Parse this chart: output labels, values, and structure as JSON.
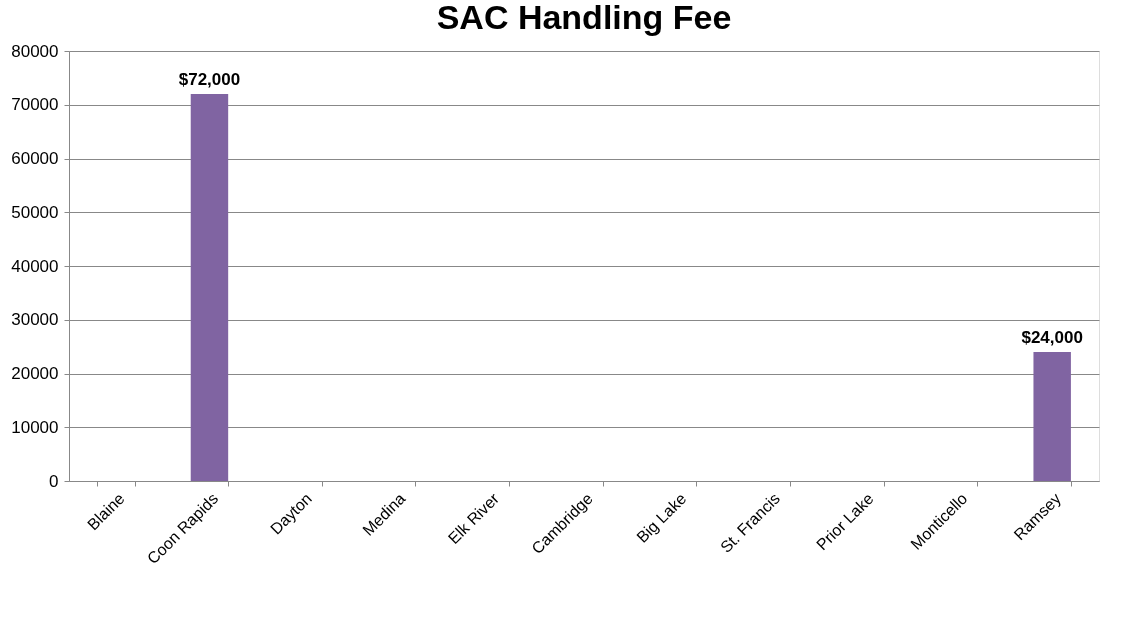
{
  "chart_data": {
    "type": "bar",
    "title": "SAC Handling Fee",
    "categories": [
      "Blaine",
      "Coon Rapids",
      "Dayton",
      "Medina",
      "Elk River",
      "Cambridge",
      "Big Lake",
      "St. Francis",
      "Prior Lake",
      "Monticello",
      "Ramsey"
    ],
    "values": [
      null,
      72000,
      null,
      null,
      null,
      null,
      null,
      null,
      null,
      null,
      24000
    ],
    "value_labels": [
      null,
      "$72,000",
      null,
      null,
      null,
      null,
      null,
      null,
      null,
      null,
      "$24,000"
    ],
    "color": "#8064a2",
    "ylim": [
      0,
      80000
    ],
    "yticks": [
      0,
      10000,
      20000,
      30000,
      40000,
      50000,
      60000,
      70000,
      80000
    ],
    "grid": "y"
  }
}
